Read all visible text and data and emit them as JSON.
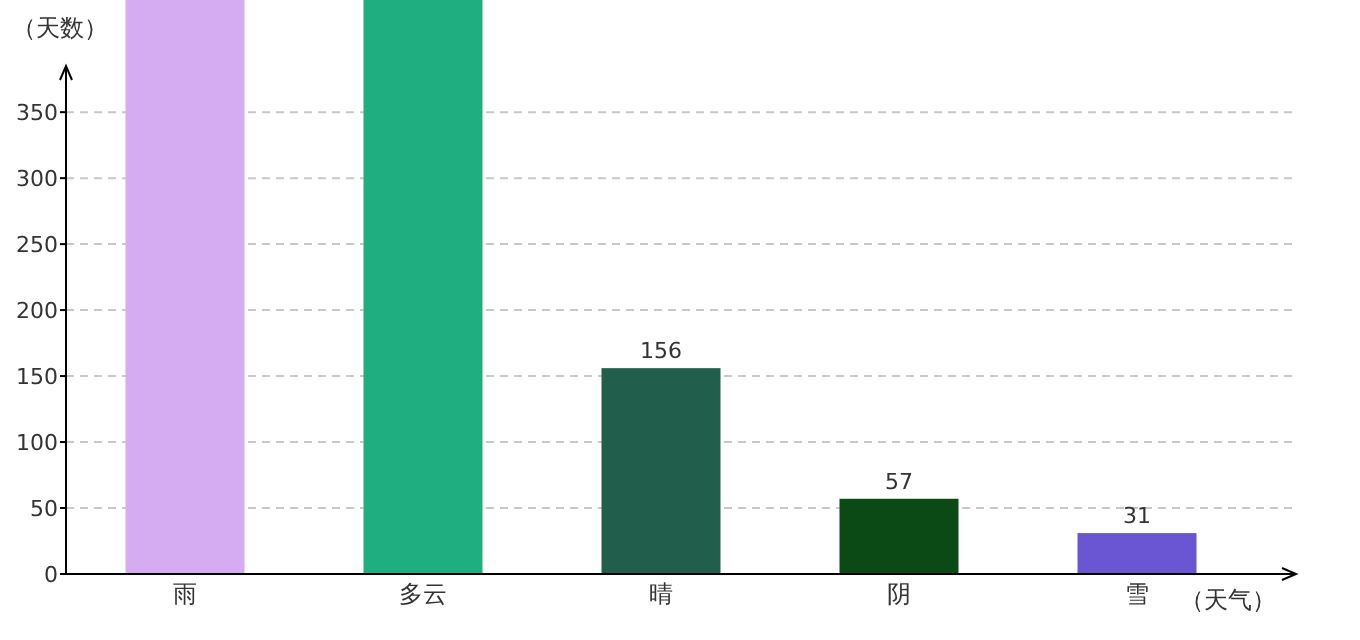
{
  "chart_data": {
    "type": "bar",
    "ylabel": "（天数）",
    "xlabel": "（天气）",
    "categories": [
      "雨",
      "多云",
      "晴",
      "阴",
      "雪"
    ],
    "values": [
      435,
      435,
      156,
      57,
      31
    ],
    "colors": [
      "#d5abf1",
      "#1fae80",
      "#225e4c",
      "#0b4a14",
      "#6a56d2"
    ],
    "value_labels": [
      null,
      null,
      "156",
      "57",
      "31"
    ],
    "ylim": [
      0,
      435
    ],
    "yticks": [
      0,
      50,
      100,
      150,
      200,
      250,
      300,
      350
    ],
    "grid": "y"
  }
}
